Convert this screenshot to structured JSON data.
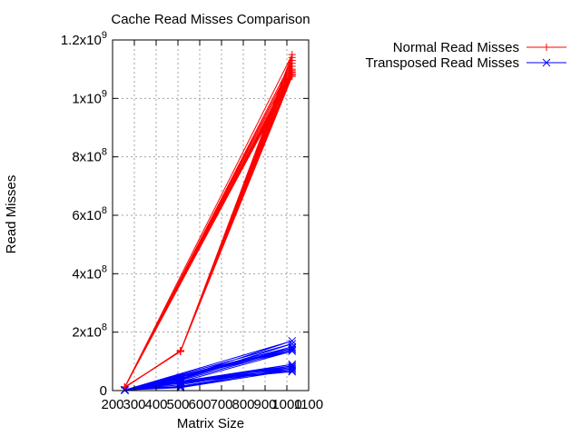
{
  "chart_data": {
    "type": "line",
    "title": "Cache Read Misses Comparison",
    "xlabel": "Matrix Size",
    "ylabel": "Read Misses",
    "xlim": [
      200,
      1100
    ],
    "ylim": [
      0,
      1200000000
    ],
    "x_ticks": [
      {
        "value": 200,
        "label": "200"
      },
      {
        "value": 300,
        "label": "300"
      },
      {
        "value": 400,
        "label": "400"
      },
      {
        "value": 500,
        "label": "500"
      },
      {
        "value": 600,
        "label": "600"
      },
      {
        "value": 700,
        "label": "700"
      },
      {
        "value": 800,
        "label": "800"
      },
      {
        "value": 900,
        "label": "900"
      },
      {
        "value": 1000,
        "label": "1000"
      },
      {
        "value": 1100,
        "label": "1100"
      }
    ],
    "y_ticks": [
      {
        "value": 0,
        "base": "0",
        "exp": ""
      },
      {
        "value": 200000000,
        "base": "2x10",
        "exp": "8"
      },
      {
        "value": 400000000,
        "base": "4x10",
        "exp": "8"
      },
      {
        "value": 600000000,
        "base": "6x10",
        "exp": "8"
      },
      {
        "value": 800000000,
        "base": "8x10",
        "exp": "8"
      },
      {
        "value": 1000000000,
        "base": "1x10",
        "exp": "9"
      },
      {
        "value": 1200000000,
        "base": "1.2x10",
        "exp": "9"
      }
    ],
    "grid": true,
    "legend_position": "top-right-outside",
    "series": [
      {
        "name": "Normal Read Misses",
        "color": "#ff0000",
        "marker": "plus",
        "x": [
          256,
          512,
          1024,
          256,
          512,
          1024,
          256,
          512,
          1024,
          256,
          512,
          1024,
          256,
          512,
          1024,
          256,
          512,
          1024,
          256,
          512,
          1024,
          256,
          512,
          1024,
          256,
          512,
          1024,
          256,
          512,
          1024,
          256,
          512,
          1024,
          256,
          512,
          1024
        ],
        "y": [
          11000000,
          134000000,
          1080000000,
          12000000,
          135000000,
          1090000000,
          10000000,
          136000000,
          1075000000,
          11000000,
          137000000,
          1085000000,
          12000000,
          134000000,
          1095000000,
          11000000,
          136000000,
          1080000000,
          11000000,
          134000000,
          1150000000,
          12000000,
          135000000,
          1130000000,
          10000000,
          136000000,
          1120000000,
          11000000,
          135000000,
          1110000000,
          12000000,
          134000000,
          1100000000,
          11000000,
          136000000,
          1140000000
        ]
      },
      {
        "name": "Transposed Read Misses",
        "color": "#0000ff",
        "marker": "cross",
        "x": [
          256,
          512,
          1024,
          256,
          512,
          1024,
          256,
          512,
          1024,
          256,
          512,
          1024,
          256,
          512,
          1024,
          256,
          512,
          1024,
          256,
          512,
          1024,
          256,
          512,
          1024,
          256,
          512,
          1024,
          256,
          512,
          1024,
          256,
          512,
          1024,
          256,
          512,
          1024
        ],
        "y": [
          2000000,
          45000000,
          170000000,
          2000000,
          40000000,
          160000000,
          2000000,
          38000000,
          150000000,
          2000000,
          42000000,
          145000000,
          2000000,
          35000000,
          140000000,
          2000000,
          30000000,
          135000000,
          2000000,
          25000000,
          90000000,
          2000000,
          20000000,
          85000000,
          2000000,
          15000000,
          80000000,
          2000000,
          12000000,
          75000000,
          2000000,
          10000000,
          70000000,
          2000000,
          28000000,
          65000000
        ]
      }
    ]
  }
}
